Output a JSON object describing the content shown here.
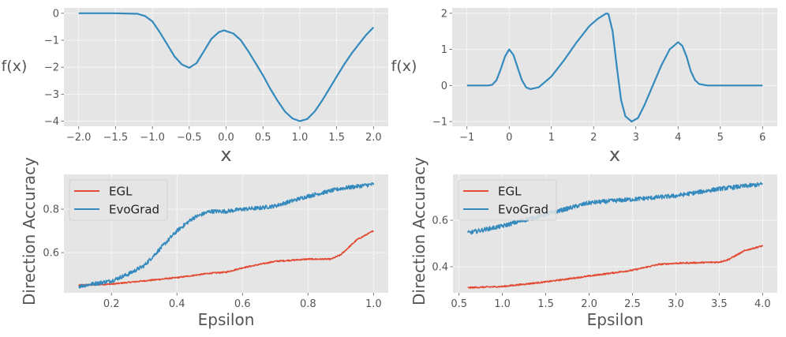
{
  "colors": {
    "background": "#E5E5E5",
    "grid": "#FFFFFF",
    "blue": "#348ABD",
    "red": "#E24A33"
  },
  "chart_data": [
    {
      "type": "line",
      "xlabel": "x",
      "ylabel": "f(x)",
      "xlim": [
        -2.2,
        2.2
      ],
      "ylim": [
        -4.19,
        0.2
      ],
      "xticks": [
        -2.0,
        -1.5,
        -1.0,
        -0.5,
        0.0,
        0.5,
        1.0,
        1.5,
        2.0
      ],
      "xticklabels": [
        "−2.0",
        "−1.5",
        "−1.0",
        "−0.5",
        "0.0",
        "0.5",
        "1.0",
        "1.5",
        "2.0"
      ],
      "yticks": [
        0,
        -1,
        -2,
        -3,
        -4
      ],
      "yticklabels": [
        "0",
        "−1",
        "−2",
        "−3",
        "−4"
      ],
      "grid": true,
      "series": [
        {
          "name": "f",
          "color": "#348ABD",
          "x": [
            -2,
            -1.5,
            -1.2,
            -1.1,
            -1.0,
            -0.9,
            -0.8,
            -0.7,
            -0.6,
            -0.5,
            -0.4,
            -0.3,
            -0.2,
            -0.1,
            -0.03,
            0.1,
            0.2,
            0.3,
            0.4,
            0.5,
            0.6,
            0.7,
            0.8,
            0.9,
            1.0,
            1.1,
            1.2,
            1.3,
            1.4,
            1.5,
            1.6,
            1.7,
            1.8,
            1.9,
            2.0
          ],
          "y": [
            0,
            0,
            -0.02,
            -0.1,
            -0.3,
            -0.7,
            -1.15,
            -1.6,
            -1.9,
            -2.02,
            -1.85,
            -1.4,
            -0.95,
            -0.7,
            -0.63,
            -0.75,
            -1.0,
            -1.4,
            -1.85,
            -2.3,
            -2.8,
            -3.25,
            -3.65,
            -3.9,
            -4.0,
            -3.92,
            -3.65,
            -3.25,
            -2.8,
            -2.35,
            -1.9,
            -1.5,
            -1.15,
            -0.8,
            -0.52
          ]
        }
      ]
    },
    {
      "type": "line",
      "xlabel": "x",
      "ylabel": "f(x)",
      "xlim": [
        -1.35,
        6.35
      ],
      "ylim": [
        -1.13,
        2.15
      ],
      "xticks": [
        -1,
        0,
        1,
        2,
        3,
        4,
        5,
        6
      ],
      "xticklabels": [
        "−1",
        "0",
        "1",
        "2",
        "3",
        "4",
        "5",
        "6"
      ],
      "yticks": [
        2,
        1,
        0,
        -1
      ],
      "yticklabels": [
        "2",
        "1",
        "0",
        "−1"
      ],
      "grid": true,
      "series": [
        {
          "name": "f",
          "color": "#348ABD",
          "x": [
            -1,
            -0.5,
            -0.4,
            -0.3,
            -0.2,
            -0.1,
            0,
            0.1,
            0.2,
            0.3,
            0.4,
            0.5,
            0.7,
            1.0,
            1.3,
            1.6,
            1.9,
            2.1,
            2.3,
            2.35,
            2.45,
            2.55,
            2.65,
            2.75,
            2.9,
            3.05,
            3.2,
            3.4,
            3.6,
            3.8,
            4.0,
            4.1,
            4.2,
            4.3,
            4.4,
            4.5,
            4.7,
            6
          ],
          "y": [
            0,
            0,
            0.02,
            0.15,
            0.45,
            0.8,
            1.0,
            0.85,
            0.5,
            0.15,
            -0.05,
            -0.1,
            -0.05,
            0.25,
            0.7,
            1.2,
            1.65,
            1.85,
            2.0,
            1.98,
            1.5,
            0.5,
            -0.4,
            -0.85,
            -1.0,
            -0.9,
            -0.55,
            0.0,
            0.55,
            1.0,
            1.2,
            1.1,
            0.8,
            0.4,
            0.15,
            0.04,
            0,
            0
          ]
        }
      ]
    },
    {
      "type": "line",
      "xlabel": "Epsilon",
      "ylabel": "Direction Accuracy",
      "xlim": [
        0.055,
        1.045
      ],
      "ylim": [
        0.415,
        0.96
      ],
      "xticks": [
        0.2,
        0.4,
        0.6,
        0.8,
        1.0
      ],
      "xticklabels": [
        "0.2",
        "0.4",
        "0.6",
        "0.8",
        "1.0"
      ],
      "yticks": [
        0.8,
        0.6
      ],
      "yticklabels": [
        "0.8",
        "0.6"
      ],
      "grid": true,
      "legend": {
        "position": "top-left",
        "entries": [
          "EGL",
          "EvoGrad"
        ]
      },
      "series": [
        {
          "name": "EGL",
          "color": "#E24A33",
          "noise": 0.003,
          "x": [
            0.1,
            0.2,
            0.3,
            0.4,
            0.5,
            0.55,
            0.6,
            0.65,
            0.7,
            0.8,
            0.87,
            0.9,
            0.95,
            1.0
          ],
          "y": [
            0.45,
            0.455,
            0.47,
            0.485,
            0.505,
            0.51,
            0.53,
            0.545,
            0.56,
            0.57,
            0.57,
            0.59,
            0.66,
            0.7
          ]
        },
        {
          "name": "EvoGrad",
          "color": "#348ABD",
          "noise": 0.009,
          "x": [
            0.1,
            0.2,
            0.25,
            0.3,
            0.35,
            0.4,
            0.45,
            0.5,
            0.55,
            0.6,
            0.65,
            0.7,
            0.8,
            0.9,
            1.0
          ],
          "y": [
            0.445,
            0.47,
            0.5,
            0.54,
            0.62,
            0.7,
            0.76,
            0.79,
            0.79,
            0.8,
            0.805,
            0.815,
            0.86,
            0.895,
            0.915
          ]
        }
      ]
    },
    {
      "type": "line",
      "xlabel": "Epsilon",
      "ylabel": "Direction Accuracy",
      "xlim": [
        0.43,
        4.17
      ],
      "ylim": [
        0.288,
        0.797
      ],
      "xticks": [
        0.5,
        1.0,
        1.5,
        2.0,
        2.5,
        3.0,
        3.5,
        4.0
      ],
      "xticklabels": [
        "0.5",
        "1.0",
        "1.5",
        "2.0",
        "2.5",
        "3.0",
        "3.5",
        "4.0"
      ],
      "yticks": [
        0.6,
        0.4
      ],
      "yticklabels": [
        "0.6",
        "0.4"
      ],
      "grid": true,
      "legend": {
        "position": "top-left",
        "entries": [
          "EGL",
          "EvoGrad"
        ]
      },
      "series": [
        {
          "name": "EGL",
          "color": "#E24A33",
          "noise": 0.003,
          "x": [
            0.6,
            1.0,
            1.5,
            2.0,
            2.5,
            2.8,
            3.0,
            3.5,
            3.6,
            3.8,
            4.0
          ],
          "y": [
            0.31,
            0.315,
            0.335,
            0.36,
            0.385,
            0.41,
            0.415,
            0.42,
            0.43,
            0.47,
            0.49
          ]
        },
        {
          "name": "EvoGrad",
          "color": "#348ABD",
          "noise": 0.009,
          "x": [
            0.6,
            1.0,
            1.5,
            2.0,
            2.5,
            3.0,
            3.5,
            4.0
          ],
          "y": [
            0.545,
            0.575,
            0.625,
            0.675,
            0.69,
            0.705,
            0.735,
            0.755
          ]
        }
      ]
    }
  ]
}
